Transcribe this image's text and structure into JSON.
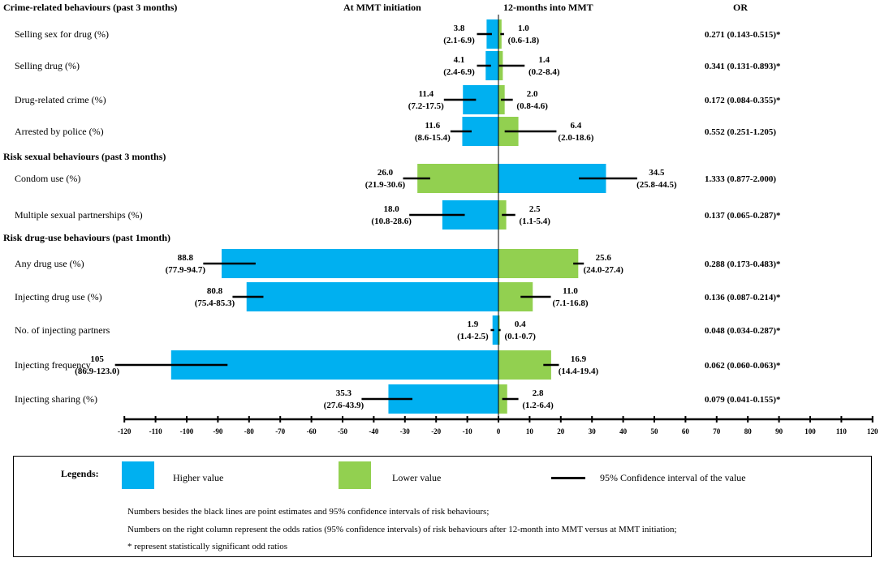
{
  "chart_data": {
    "type": "bar",
    "orientation": "horizontal-diverging",
    "column_headers": {
      "left": "At MMT initiation",
      "right": "12-months into MMT",
      "or": "OR"
    },
    "groups": [
      {
        "title": "Crime-related behaviours (past 3 months)",
        "rows": [
          {
            "label": "Selling sex for drug (%)",
            "left": {
              "value": 3.8,
              "ci": [
                2.1,
                6.9
              ],
              "color": "blue"
            },
            "right": {
              "value": 1.0,
              "ci": [
                0.6,
                1.8
              ],
              "color": "green"
            },
            "left_text": "3.8",
            "left_ci_text": "(2.1-6.9)",
            "right_text": "1.0",
            "right_ci_text": "(0.6-1.8)",
            "or": "0.271 (0.143-0.515)*"
          },
          {
            "label": "Selling drug (%)",
            "left": {
              "value": 4.1,
              "ci": [
                2.4,
                6.9
              ],
              "color": "blue"
            },
            "right": {
              "value": 1.4,
              "ci": [
                0.2,
                8.4
              ],
              "color": "green"
            },
            "left_text": "4.1",
            "left_ci_text": "(2.4-6.9)",
            "right_text": "1.4",
            "right_ci_text": "(0.2-8.4)",
            "or": "0.341 (0.131-0.893)*"
          },
          {
            "label": "Drug-related crime (%)",
            "left": {
              "value": 11.4,
              "ci": [
                7.2,
                17.5
              ],
              "color": "blue"
            },
            "right": {
              "value": 2.0,
              "ci": [
                0.8,
                4.6
              ],
              "color": "green"
            },
            "left_text": "11.4",
            "left_ci_text": "(7.2-17.5)",
            "right_text": "2.0",
            "right_ci_text": "(0.8-4.6)",
            "or": "0.172 (0.084-0.355)*"
          },
          {
            "label": "Arrested by police (%)",
            "left": {
              "value": 11.6,
              "ci": [
                8.6,
                15.4
              ],
              "color": "blue"
            },
            "right": {
              "value": 6.4,
              "ci": [
                2.0,
                18.6
              ],
              "color": "green"
            },
            "left_text": "11.6",
            "left_ci_text": "(8.6-15.4)",
            "right_text": "6.4",
            "right_ci_text": "(2.0-18.6)",
            "or": "0.552 (0.251-1.205)"
          }
        ]
      },
      {
        "title": "Risk sexual behaviours (past 3 months)",
        "rows": [
          {
            "label": "Condom use (%)",
            "left": {
              "value": 26.0,
              "ci": [
                21.9,
                30.6
              ],
              "color": "green"
            },
            "right": {
              "value": 34.5,
              "ci": [
                25.8,
                44.5
              ],
              "color": "blue"
            },
            "left_text": "26.0",
            "left_ci_text": "(21.9-30.6)",
            "right_text": "34.5",
            "right_ci_text": "(25.8-44.5)",
            "or": "1.333 (0.877-2.000)"
          },
          {
            "label": "Multiple sexual partnerships (%)",
            "left": {
              "value": 18.0,
              "ci": [
                10.8,
                28.6
              ],
              "color": "blue"
            },
            "right": {
              "value": 2.5,
              "ci": [
                1.1,
                5.4
              ],
              "color": "green"
            },
            "left_text": "18.0",
            "left_ci_text": "(10.8-28.6)",
            "right_text": "2.5",
            "right_ci_text": "(1.1-5.4)",
            "or": "0.137 (0.065-0.287)*"
          }
        ]
      },
      {
        "title": "Risk drug-use behaviours (past 1month)",
        "rows": [
          {
            "label": "Any drug use (%)",
            "left": {
              "value": 88.8,
              "ci": [
                77.9,
                94.7
              ],
              "color": "blue"
            },
            "right": {
              "value": 25.6,
              "ci": [
                24.0,
                27.4
              ],
              "color": "green"
            },
            "left_text": "88.8",
            "left_ci_text": "(77.9-94.7)",
            "right_text": "25.6",
            "right_ci_text": "(24.0-27.4)",
            "or": "0.288 (0.173-0.483)*"
          },
          {
            "label": "Injecting drug use (%)",
            "left": {
              "value": 80.8,
              "ci": [
                75.4,
                85.3
              ],
              "color": "blue"
            },
            "right": {
              "value": 11.0,
              "ci": [
                7.1,
                16.8
              ],
              "color": "green"
            },
            "left_text": "80.8",
            "left_ci_text": "(75.4-85.3)",
            "right_text": "11.0",
            "right_ci_text": "(7.1-16.8)",
            "or": "0.136 (0.087-0.214)*"
          },
          {
            "label": "No. of injecting partners",
            "left": {
              "value": 1.9,
              "ci": [
                1.4,
                2.5
              ],
              "color": "blue"
            },
            "right": {
              "value": 0.4,
              "ci": [
                0.1,
                0.7
              ],
              "color": "green"
            },
            "left_text": "1.9",
            "left_ci_text": "(1.4-2.5)",
            "right_text": "0.4",
            "right_ci_text": "(0.1-0.7)",
            "or": "0.048 (0.034-0.287)*"
          },
          {
            "label": "Injecting frequency",
            "left": {
              "value": 105,
              "ci": [
                86.9,
                123.0
              ],
              "color": "blue"
            },
            "right": {
              "value": 16.9,
              "ci": [
                14.4,
                19.4
              ],
              "color": "green"
            },
            "left_text": "105",
            "left_ci_text": "(86.9-123.0)",
            "right_text": "16.9",
            "right_ci_text": "(14.4-19.4)",
            "or": "0.062 (0.060-0.063)*"
          },
          {
            "label": "Injecting sharing (%)",
            "left": {
              "value": 35.3,
              "ci": [
                27.6,
                43.9
              ],
              "color": "blue"
            },
            "right": {
              "value": 2.8,
              "ci": [
                1.2,
                6.4
              ],
              "color": "green"
            },
            "left_text": "35.3",
            "left_ci_text": "(27.6-43.9)",
            "right_text": "2.8",
            "right_ci_text": "(1.2-6.4)",
            "or": "0.079 (0.041-0.155)*"
          }
        ]
      }
    ],
    "x_axis": {
      "range": [
        -120,
        120
      ],
      "ticks": [
        "-120",
        "-110",
        "-100",
        "-90",
        "-80",
        "-70",
        "-60",
        "-50",
        "-40",
        "-30",
        "-20",
        "-10",
        "0",
        "10",
        "20",
        "30",
        "40",
        "50",
        "60",
        "70",
        "80",
        "90",
        "100",
        "110",
        "120"
      ],
      "tick_values": [
        -120,
        -110,
        -100,
        -90,
        -80,
        -70,
        -60,
        -50,
        -40,
        -30,
        -20,
        -10,
        0,
        10,
        20,
        30,
        40,
        50,
        60,
        70,
        80,
        90,
        100,
        110,
        120
      ]
    },
    "colors": {
      "blue": "#00b0f0",
      "green": "#92d050",
      "line": "#000000"
    }
  },
  "legend": {
    "title": "Legends:",
    "higher": "Higher value",
    "lower": "Lower value",
    "ci": "95% Confidence interval of the value",
    "notes": [
      "Numbers besides the black lines are point estimates and 95% confidence intervals of risk behaviours;",
      "Numbers on the right column represent the odds ratios (95% confidence intervals) of risk behaviours after 12-month into MMT versus at MMT initiation;",
      "* represent statistically significant odd ratios"
    ]
  }
}
